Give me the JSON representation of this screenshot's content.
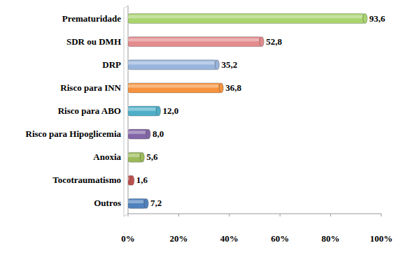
{
  "chart_data": {
    "type": "bar",
    "orientation": "horizontal",
    "categories": [
      "Prematuridade",
      "SDR ou DMH",
      "DRP",
      "Risco para INN",
      "Risco para ABO",
      "Risco para Hipoglicemia",
      "Anoxia",
      "Tocotraumatismo",
      "Outros"
    ],
    "values": [
      93.6,
      52.8,
      35.2,
      36.8,
      12.0,
      8.0,
      5.6,
      1.6,
      7.2
    ],
    "value_labels": [
      "93,6",
      "52,8",
      "35,2",
      "36,8",
      "12,0",
      "8,0",
      "5,6",
      "1,6",
      "7,2"
    ],
    "colors": [
      "#a9d46e",
      "#e38b8d",
      "#98b4dc",
      "#f7923e",
      "#4eaec8",
      "#8366a6",
      "#9bbb59",
      "#c0504d",
      "#4f81bd"
    ],
    "xlim": [
      0,
      100
    ],
    "xticks": [
      {
        "value": 0,
        "label": "0%"
      },
      {
        "value": 20,
        "label": "20%"
      },
      {
        "value": 40,
        "label": "40%"
      },
      {
        "value": 60,
        "label": "60%"
      },
      {
        "value": 80,
        "label": "80%"
      },
      {
        "value": 100,
        "label": "100%"
      }
    ],
    "grid": false,
    "data_labels": true
  }
}
